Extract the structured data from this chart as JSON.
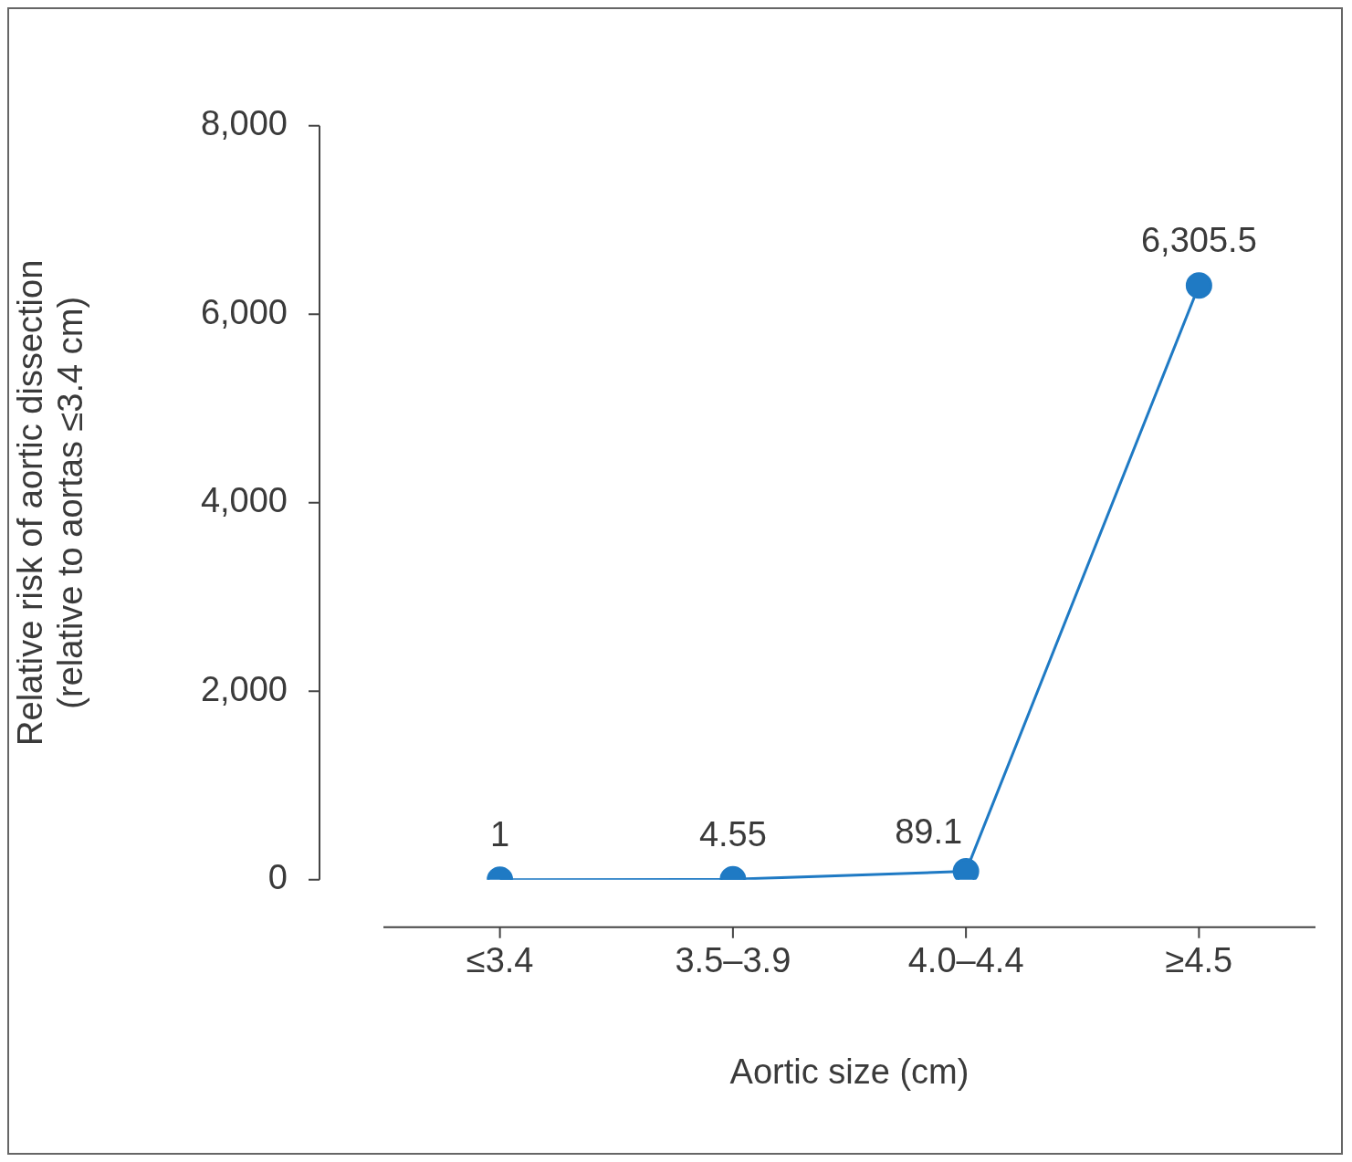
{
  "chart_data": {
    "type": "line",
    "xlabel": "Aortic size (cm)",
    "ylabel": "Relative risk of aortic dissection\n(relative to aortas ≤3.4 cm)",
    "categories": [
      "≤3.4",
      "3.5–3.9",
      "4.0–4.4",
      "≥4.5"
    ],
    "series": [
      {
        "color": "#1f7ac4",
        "values": [
          1,
          4.55,
          89.1,
          6305.5
        ],
        "value_labels": [
          "1",
          "4.55",
          "89.1",
          "6,305.5"
        ]
      }
    ],
    "ylim": [
      0,
      8000
    ],
    "yticks": [
      0,
      {
        "value": 2000,
        "label": "2,000"
      },
      {
        "value": 4000,
        "label": "4,000"
      },
      {
        "value": 6000,
        "label": "6,000"
      },
      {
        "value": 8000,
        "label": "8,000"
      }
    ],
    "grid": false,
    "legend": false,
    "marker": "circle",
    "line_style": "solid"
  }
}
